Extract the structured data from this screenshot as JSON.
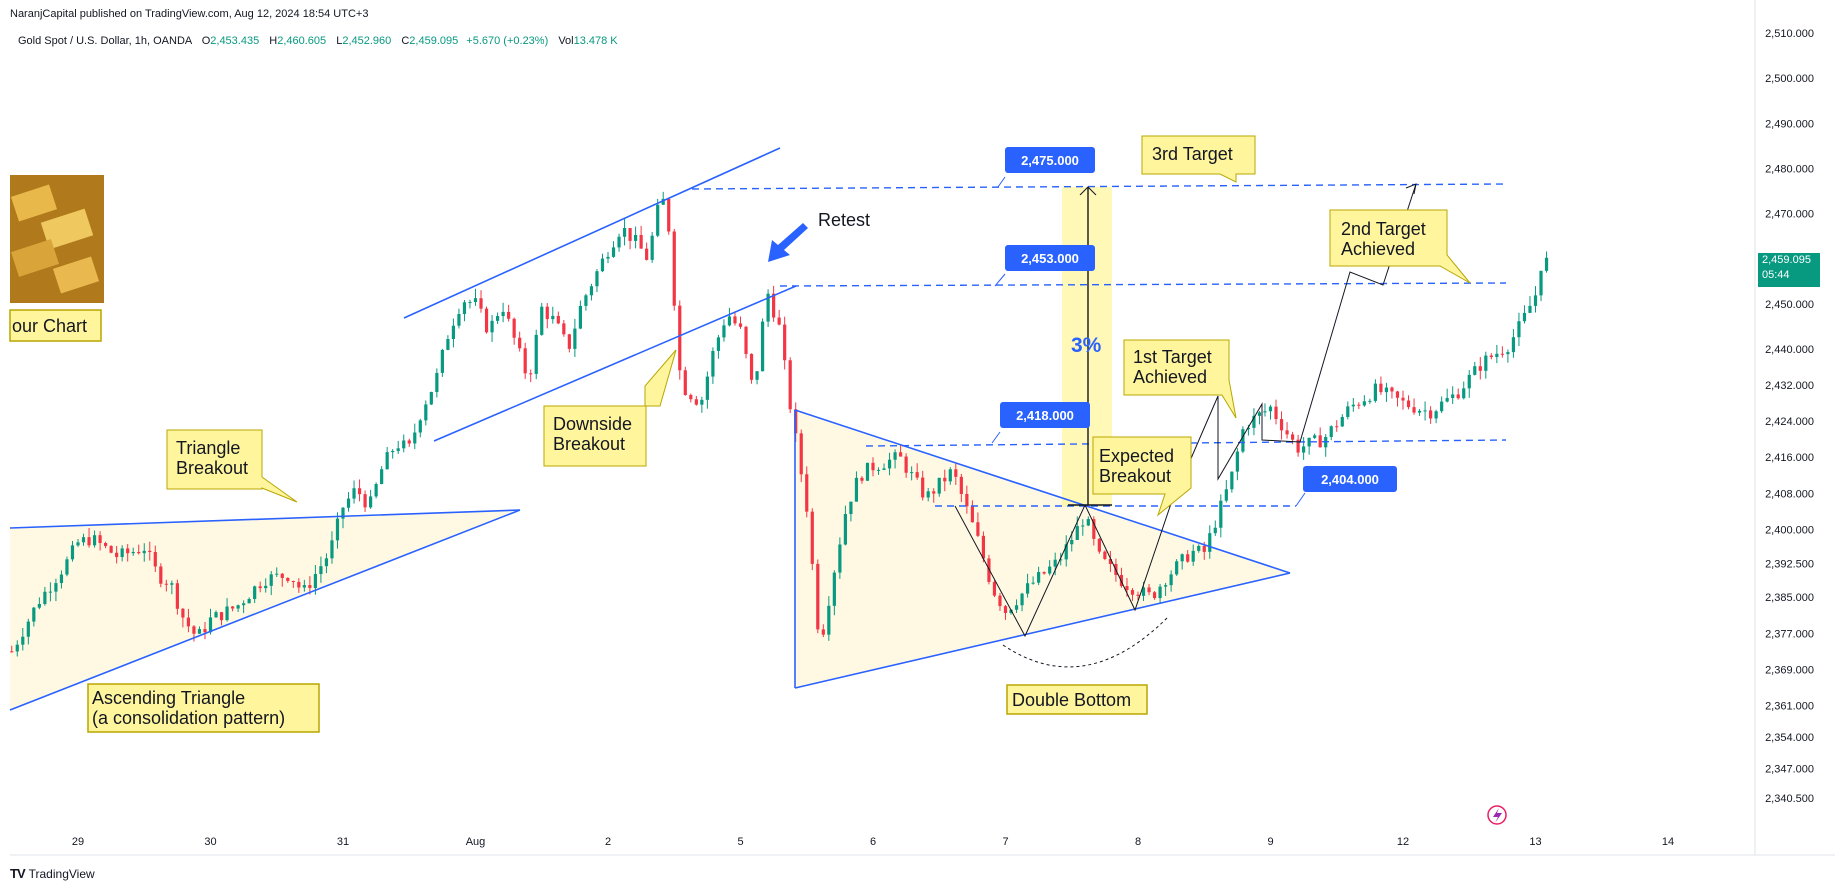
{
  "header": {
    "publisher": "NaranjCapital published on TradingView.com, Aug 12, 2024 18:54 UTC+3"
  },
  "legend": {
    "symbol": "Gold Spot / U.S. Dollar, 1h, OANDA",
    "o_label": "O",
    "o": "2,453.435",
    "h_label": "H",
    "h": "2,460.605",
    "l_label": "L",
    "l": "2,452.960",
    "c_label": "C",
    "c": "2,459.095",
    "chg": "+5.670 (+0.23%)",
    "vol_label": "Vol",
    "vol": "13.478 K"
  },
  "price_tag": {
    "price": "2,459.095",
    "countdown": "05:44"
  },
  "footer": {
    "brand": "TradingView"
  },
  "colors": {
    "up": "#089981",
    "down": "#f23645",
    "drawing": "#2962ff",
    "callout_fill": "#fff59d",
    "badge": "#2962ff",
    "zone": "#fffde7",
    "measure": "#fff59d"
  },
  "chart_data": {
    "type": "candlestick",
    "symbol": "Gold Spot / U.S. Dollar",
    "interval": "1h",
    "ylim": [
      2336,
      2512
    ],
    "y_ticks": [
      2510,
      2500,
      2490,
      2480,
      2470,
      2460,
      2450,
      2440,
      2432,
      2424,
      2416,
      2408,
      2400,
      2392.5,
      2385,
      2377,
      2369,
      2361,
      2354,
      2347,
      2340.5
    ],
    "y_tick_labels": [
      "2,510.000",
      "2,500.000",
      "2,490.000",
      "2,480.000",
      "2,470.000",
      "",
      "2,450.000",
      "2,440.000",
      "2,432.000",
      "2,424.000",
      "2,416.000",
      "2,408.000",
      "2,400.000",
      "2,392.500",
      "2,385.000",
      "2,377.000",
      "2,369.000",
      "2,361.000",
      "2,354.000",
      "2,347.000",
      "2,340.500"
    ],
    "x_ticks": [
      "29",
      "30",
      "31",
      "Aug",
      "2",
      "5",
      "6",
      "7",
      "8",
      "9",
      "12",
      "13",
      "14"
    ],
    "x_tick_days": [
      0,
      1,
      2,
      3,
      4,
      5,
      6,
      7,
      8,
      9,
      10,
      11,
      12
    ],
    "xlim_days": [
      -0.5,
      12.5
    ],
    "price_path": [
      [
        -0.5,
        2373
      ],
      [
        -0.3,
        2384
      ],
      [
        -0.1,
        2392
      ],
      [
        0.0,
        2397
      ],
      [
        0.1,
        2398
      ],
      [
        0.3,
        2394
      ],
      [
        0.5,
        2396
      ],
      [
        0.6,
        2390
      ],
      [
        0.7,
        2388
      ],
      [
        0.8,
        2380
      ],
      [
        0.9,
        2376
      ],
      [
        1.0,
        2380
      ],
      [
        1.2,
        2383
      ],
      [
        1.4,
        2389
      ],
      [
        1.6,
        2390
      ],
      [
        1.7,
        2386
      ],
      [
        1.9,
        2395
      ],
      [
        2.0,
        2405
      ],
      [
        2.1,
        2409
      ],
      [
        2.2,
        2405
      ],
      [
        2.3,
        2414
      ],
      [
        2.4,
        2419
      ],
      [
        2.5,
        2418
      ],
      [
        2.6,
        2427
      ],
      [
        2.7,
        2433
      ],
      [
        2.8,
        2444
      ],
      [
        2.9,
        2451
      ],
      [
        3.0,
        2450
      ],
      [
        3.1,
        2444
      ],
      [
        3.2,
        2450
      ],
      [
        3.4,
        2433
      ],
      [
        3.5,
        2449
      ],
      [
        3.6,
        2446
      ],
      [
        3.7,
        2440
      ],
      [
        3.8,
        2450
      ],
      [
        4.0,
        2462
      ],
      [
        4.1,
        2467
      ],
      [
        4.2,
        2464
      ],
      [
        4.3,
        2460
      ],
      [
        4.4,
        2474
      ],
      [
        4.45,
        2470
      ],
      [
        4.55,
        2432
      ],
      [
        4.7,
        2428
      ],
      [
        4.8,
        2440
      ],
      [
        4.9,
        2448
      ],
      [
        5.0,
        2444
      ],
      [
        5.1,
        2430
      ],
      [
        5.2,
        2453
      ],
      [
        5.3,
        2444
      ],
      [
        5.35,
        2432
      ],
      [
        5.5,
        2405
      ],
      [
        5.6,
        2374
      ],
      [
        5.7,
        2390
      ],
      [
        5.8,
        2405
      ],
      [
        5.9,
        2412
      ],
      [
        6.0,
        2414
      ],
      [
        6.2,
        2416
      ],
      [
        6.4,
        2407
      ],
      [
        6.6,
        2413
      ],
      [
        6.8,
        2397
      ],
      [
        6.9,
        2387
      ],
      [
        7.0,
        2382
      ],
      [
        7.2,
        2388
      ],
      [
        7.4,
        2393
      ],
      [
        7.6,
        2403
      ],
      [
        7.7,
        2394
      ],
      [
        7.9,
        2388
      ],
      [
        8.1,
        2385
      ],
      [
        8.2,
        2389
      ],
      [
        8.4,
        2395
      ],
      [
        8.5,
        2395
      ],
      [
        8.7,
        2411
      ],
      [
        8.8,
        2423
      ],
      [
        9.0,
        2427
      ],
      [
        9.2,
        2418
      ],
      [
        9.4,
        2420
      ],
      [
        9.6,
        2427
      ],
      [
        9.8,
        2431
      ],
      [
        10.0,
        2428
      ],
      [
        10.2,
        2426
      ],
      [
        10.4,
        2430
      ],
      [
        10.6,
        2437
      ],
      [
        10.8,
        2441
      ],
      [
        10.9,
        2446
      ],
      [
        11.0,
        2452
      ],
      [
        11.05,
        2460
      ],
      [
        11.1,
        2459
      ]
    ],
    "last_price": 2459.095,
    "levels": [
      {
        "price": 2475,
        "label": "2,475.000"
      },
      {
        "price": 2453,
        "label": "2,453.000"
      },
      {
        "price": 2418,
        "label": "2,418.000"
      },
      {
        "price": 2404,
        "label": "2,404.000"
      }
    ],
    "annotations": {
      "retest": "Retest",
      "your_chart": "our Chart",
      "triangle_breakout_1": "Triangle",
      "triangle_breakout_2": "Breakout",
      "ascending_1": "Ascending Triangle",
      "ascending_2": "(a consolidation pattern)",
      "downside_1": "Downside",
      "downside_2": "Breakout",
      "expected_1": "Expected",
      "expected_2": "Breakout",
      "first_1": "1st Target",
      "first_2": "Achieved",
      "second_1": "2nd Target",
      "second_2": "Achieved",
      "third": "3rd Target",
      "double_bottom": "Double Bottom",
      "pct": "3%"
    }
  }
}
